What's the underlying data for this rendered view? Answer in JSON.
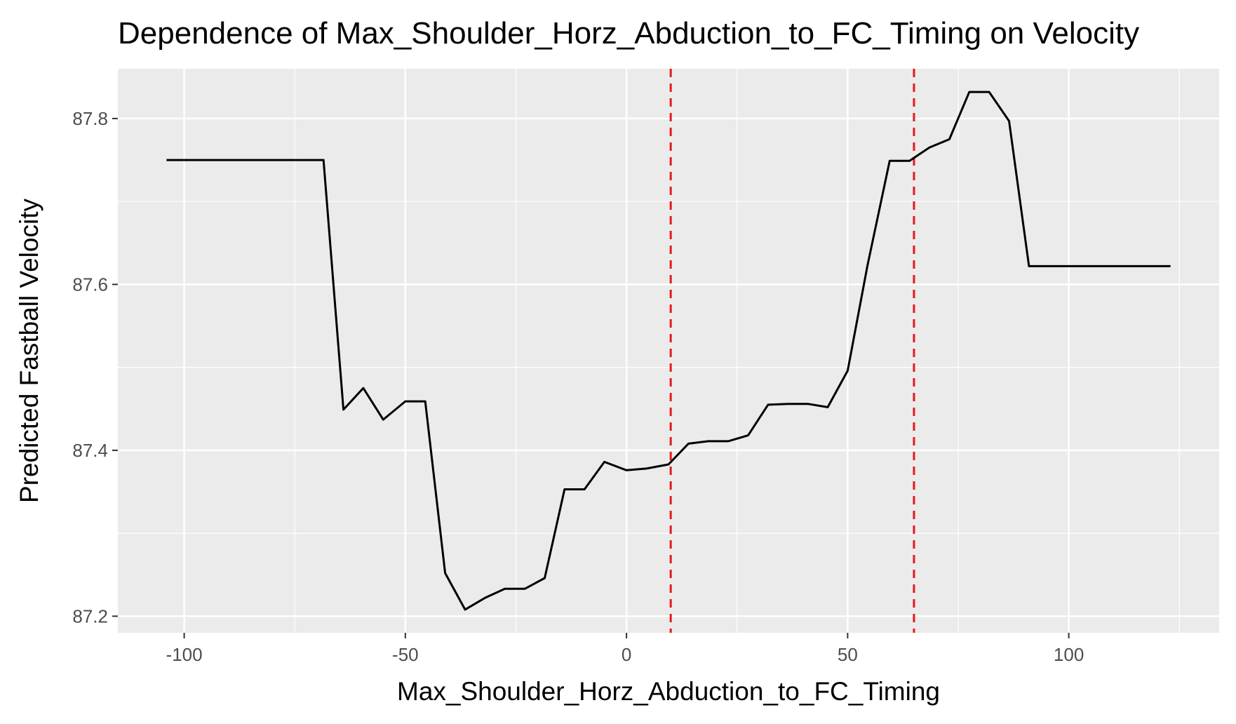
{
  "chart_data": {
    "type": "line",
    "title": "Dependence of Max_Shoulder_Horz_Abduction_to_FC_Timing on Velocity",
    "xlabel": "Max_Shoulder_Horz_Abduction_to_FC_Timing",
    "ylabel": "Predicted Fastball Velocity",
    "xlim": [
      -115,
      134
    ],
    "ylim": [
      87.18,
      87.86
    ],
    "xticks": [
      -100,
      -50,
      0,
      50,
      100
    ],
    "yticks": [
      87.2,
      87.4,
      87.6,
      87.8
    ],
    "x_tick_labels": [
      "-100",
      "-50",
      "0",
      "50",
      "100"
    ],
    "y_tick_labels": [
      "87.2",
      "87.4",
      "87.6",
      "87.8"
    ],
    "grid": true,
    "background": "#ebebeb",
    "series": [
      {
        "color": "#000000",
        "points": [
          [
            -104,
            87.75
          ],
          [
            -68.5,
            87.75
          ],
          [
            -64,
            87.449
          ],
          [
            -59.5,
            87.475
          ],
          [
            -55,
            87.437
          ],
          [
            -50,
            87.459
          ],
          [
            -45.5,
            87.459
          ],
          [
            -41,
            87.252
          ],
          [
            -36.5,
            87.208
          ],
          [
            -32,
            87.222
          ],
          [
            -27.5,
            87.233
          ],
          [
            -23,
            87.233
          ],
          [
            -18.5,
            87.246
          ],
          [
            -14,
            87.353
          ],
          [
            -9.5,
            87.353
          ],
          [
            -5,
            87.386
          ],
          [
            0,
            87.376
          ],
          [
            4.5,
            87.378
          ],
          [
            9.5,
            87.383
          ],
          [
            14,
            87.408
          ],
          [
            18.5,
            87.411
          ],
          [
            23,
            87.411
          ],
          [
            27.5,
            87.418
          ],
          [
            32,
            87.455
          ],
          [
            36.5,
            87.456
          ],
          [
            41,
            87.456
          ],
          [
            45.5,
            87.452
          ],
          [
            50,
            87.496
          ],
          [
            54.5,
            87.623
          ],
          [
            59.5,
            87.749
          ],
          [
            64,
            87.749
          ],
          [
            68.5,
            87.765
          ],
          [
            73,
            87.775
          ],
          [
            77.5,
            87.832
          ],
          [
            82,
            87.832
          ],
          [
            86.5,
            87.797
          ],
          [
            91,
            87.622
          ],
          [
            123,
            87.622
          ]
        ]
      }
    ],
    "reference_lines": [
      {
        "x": 10,
        "color": "#e41a1c",
        "style": "dashed"
      },
      {
        "x": 65,
        "color": "#e41a1c",
        "style": "dashed"
      }
    ],
    "gridline_color": "#ffffff"
  }
}
